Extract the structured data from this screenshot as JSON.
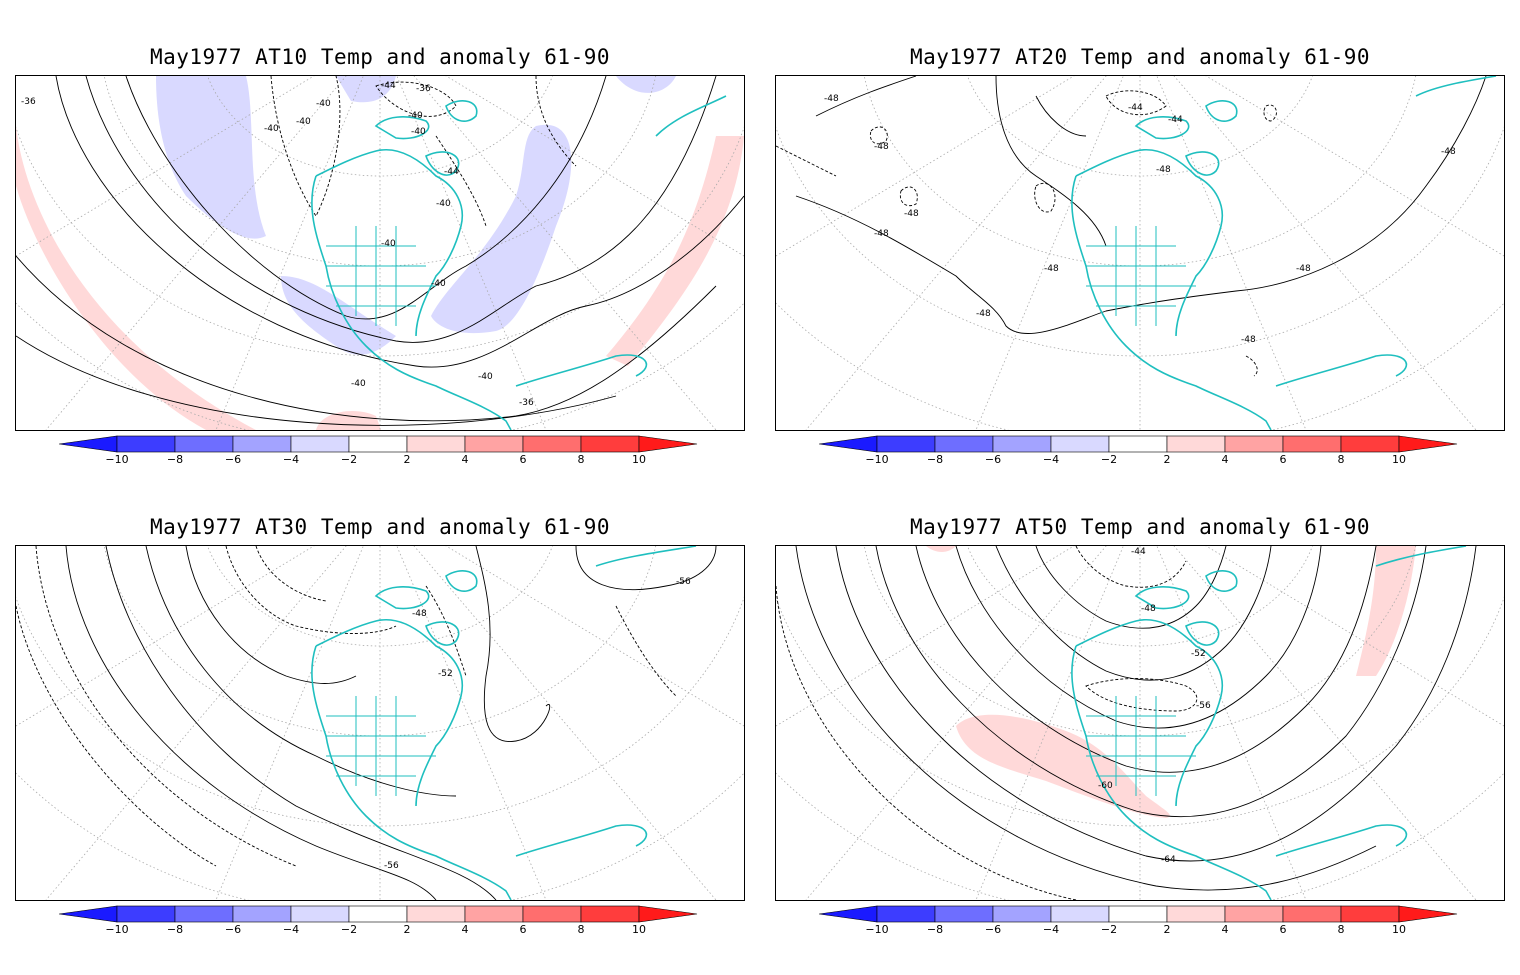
{
  "panels": [
    {
      "title": "May1977 AT10 Temp and anomaly 61-90",
      "contour_labels": [
        "-36",
        "-40",
        "-40",
        "-44",
        "-36",
        "-40",
        "-40",
        "-40",
        "-40",
        "-44",
        "-40",
        "-40",
        "-40",
        "-40",
        "-36"
      ]
    },
    {
      "title": "May1977 AT20 Temp and anomaly 61-90",
      "contour_labels": [
        "-48",
        "-48",
        "-44",
        "-44",
        "-48",
        "-48",
        "-48",
        "-48",
        "-48",
        "-48",
        "-48",
        "-48"
      ]
    },
    {
      "title": "May1977 AT30 Temp and anomaly 61-90",
      "contour_labels": [
        "-56",
        "-48",
        "-52",
        "-56"
      ]
    },
    {
      "title": "May1977 AT50 Temp and anomaly 61-90",
      "contour_labels": [
        "-44",
        "-48",
        "-52",
        "-56",
        "-60",
        "-64"
      ]
    }
  ],
  "colorbar": {
    "ticks": [
      "−10",
      "−8",
      "−6",
      "−4",
      "−2",
      "2",
      "4",
      "6",
      "8",
      "10"
    ],
    "colors": [
      "#1a1aff",
      "#3d3dff",
      "#6e6eff",
      "#a3a3ff",
      "#d9d9ff",
      "#ffffff",
      "#ffd9d9",
      "#ffa3a3",
      "#ff6e6e",
      "#ff3d3d",
      "#ff1a1a"
    ]
  },
  "colors": {
    "coastline": "#1fbfbf",
    "contour": "#000000",
    "grid": "#aaaaaa"
  }
}
